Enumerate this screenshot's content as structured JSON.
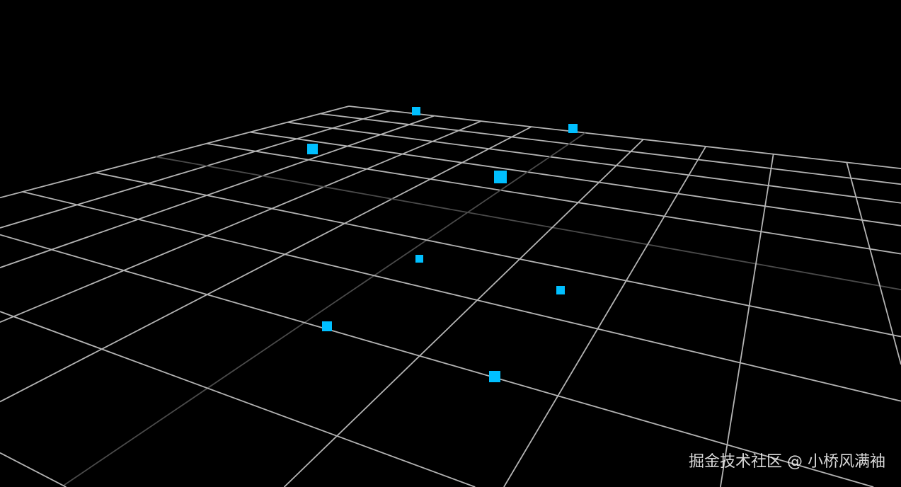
{
  "scene": {
    "grid_divisions": 10,
    "grid_color": "#b4b4b4",
    "center_line_color": "#4a4a4a",
    "point_color": "#00bfff",
    "background_color": "#000000",
    "point_count": 8
  },
  "watermark": {
    "text": "掘金技术社区 @ 小桥风满袖"
  }
}
